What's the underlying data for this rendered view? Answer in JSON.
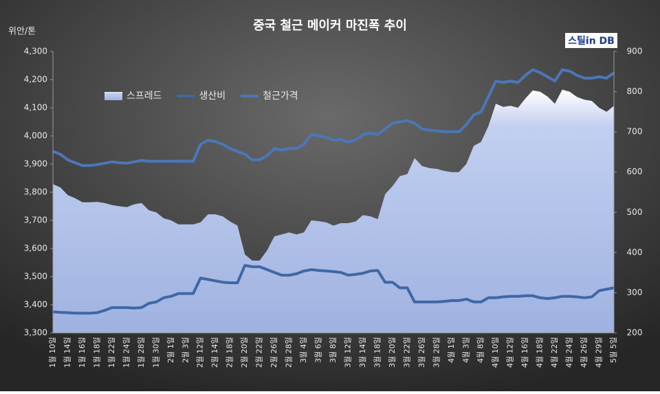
{
  "chart_data": {
    "type": "line",
    "title": "중국 철근 메이커 마진폭 추이",
    "y_label": "위안/톤",
    "logo": "스틸in DB",
    "categories": [
      "1월 10일",
      null,
      "1월 14일",
      null,
      "1월 16일",
      null,
      "1월 18일",
      null,
      "1월 22일",
      null,
      "1월 24일",
      null,
      "1월 28일",
      null,
      "1월 30일",
      null,
      "2월 1일",
      null,
      "2월 3일",
      null,
      "2월 12일",
      null,
      "2월 14일",
      null,
      "2월 18일",
      null,
      "2월 20일",
      null,
      "2월 22일",
      null,
      "2월 26일",
      null,
      "2월 28일",
      null,
      "3월 4일",
      null,
      "3월 6일",
      null,
      "3월 8일",
      null,
      "3월 12일",
      null,
      "3월 14일",
      null,
      "3월 18일",
      null,
      "3월 20일",
      null,
      "3월 22일",
      null,
      "3월 26일",
      null,
      "3월 28일",
      null,
      "4월 1일",
      null,
      "4월 3일",
      null,
      "4월 8일",
      null,
      "4월 10일",
      null,
      "4월 12일",
      null,
      "4월 16일",
      null,
      "4월 18일",
      null,
      "4월 22일",
      null,
      "4월 24일",
      null,
      "4월 26일",
      null,
      "4월 29일",
      null,
      "5월 5일"
    ],
    "series": [
      {
        "name": "스프레드",
        "kind": "area",
        "axis": "y2",
        "color": "#b8c8ee",
        "values": [
          570,
          562,
          543,
          535,
          525,
          525,
          526,
          523,
          518,
          515,
          513,
          520,
          523,
          505,
          500,
          485,
          480,
          470,
          470,
          470,
          475,
          495,
          495,
          490,
          477,
          467,
          395,
          380,
          380,
          405,
          440,
          445,
          450,
          445,
          450,
          480,
          478,
          475,
          467,
          473,
          473,
          477,
          493,
          490,
          483,
          545,
          565,
          590,
          595,
          635,
          615,
          610,
          608,
          603,
          600,
          600,
          620,
          665,
          675,
          715,
          770,
          762,
          765,
          760,
          783,
          803,
          800,
          788,
          770,
          805,
          800,
          787,
          780,
          777,
          760,
          750,
          765
        ]
      },
      {
        "name": "생산비",
        "kind": "line",
        "color": "#3f67a6",
        "values": [
          3375,
          3373,
          3372,
          3370,
          3370,
          3370,
          3372,
          3380,
          3390,
          3390,
          3390,
          3388,
          3390,
          3405,
          3410,
          3425,
          3430,
          3440,
          3440,
          3440,
          3495,
          3490,
          3485,
          3480,
          3478,
          3478,
          3540,
          3535,
          3535,
          3525,
          3515,
          3505,
          3505,
          3510,
          3520,
          3525,
          3522,
          3520,
          3518,
          3515,
          3505,
          3508,
          3512,
          3520,
          3522,
          3480,
          3480,
          3460,
          3460,
          3410,
          3410,
          3410,
          3410,
          3412,
          3415,
          3415,
          3420,
          3410,
          3410,
          3425,
          3425,
          3428,
          3430,
          3430,
          3432,
          3432,
          3425,
          3422,
          3425,
          3430,
          3430,
          3428,
          3425,
          3428,
          3450,
          3455,
          3460
        ]
      },
      {
        "name": "철근가격",
        "kind": "line",
        "color": "#4b77b8",
        "values": [
          3945,
          3935,
          3915,
          3905,
          3895,
          3895,
          3898,
          3903,
          3908,
          3905,
          3903,
          3908,
          3913,
          3910,
          3910,
          3910,
          3910,
          3910,
          3910,
          3910,
          3970,
          3985,
          3980,
          3970,
          3955,
          3945,
          3935,
          3915,
          3915,
          3930,
          3955,
          3950,
          3955,
          3955,
          3970,
          4005,
          4000,
          3995,
          3985,
          3988,
          3978,
          3985,
          4005,
          4010,
          4005,
          4025,
          4045,
          4050,
          4055,
          4045,
          4025,
          4020,
          4018,
          4015,
          4015,
          4015,
          4040,
          4075,
          4085,
          4140,
          4195,
          4190,
          4195,
          4190,
          4215,
          4235,
          4225,
          4210,
          4195,
          4235,
          4230,
          4215,
          4205,
          4205,
          4210,
          4205,
          4225
        ]
      }
    ],
    "ylim": [
      3300,
      4300
    ],
    "yticks": [
      {
        "value": 3300,
        "label": "3,300"
      },
      {
        "value": 3400,
        "label": "3,400"
      },
      {
        "value": 3500,
        "label": "3,500"
      },
      {
        "value": 3600,
        "label": "3,600"
      },
      {
        "value": 3700,
        "label": "3,700"
      },
      {
        "value": 3800,
        "label": "3,800"
      },
      {
        "value": 3900,
        "label": "3,900"
      },
      {
        "value": 4000,
        "label": "4,000"
      },
      {
        "value": 4100,
        "label": "4,100"
      },
      {
        "value": 4200,
        "label": "4,200"
      },
      {
        "value": 4300,
        "label": "4,300"
      }
    ],
    "y2lim": [
      200,
      900
    ],
    "y2ticks": [
      200,
      300,
      400,
      500,
      600,
      700,
      800,
      900
    ],
    "grid": false
  }
}
